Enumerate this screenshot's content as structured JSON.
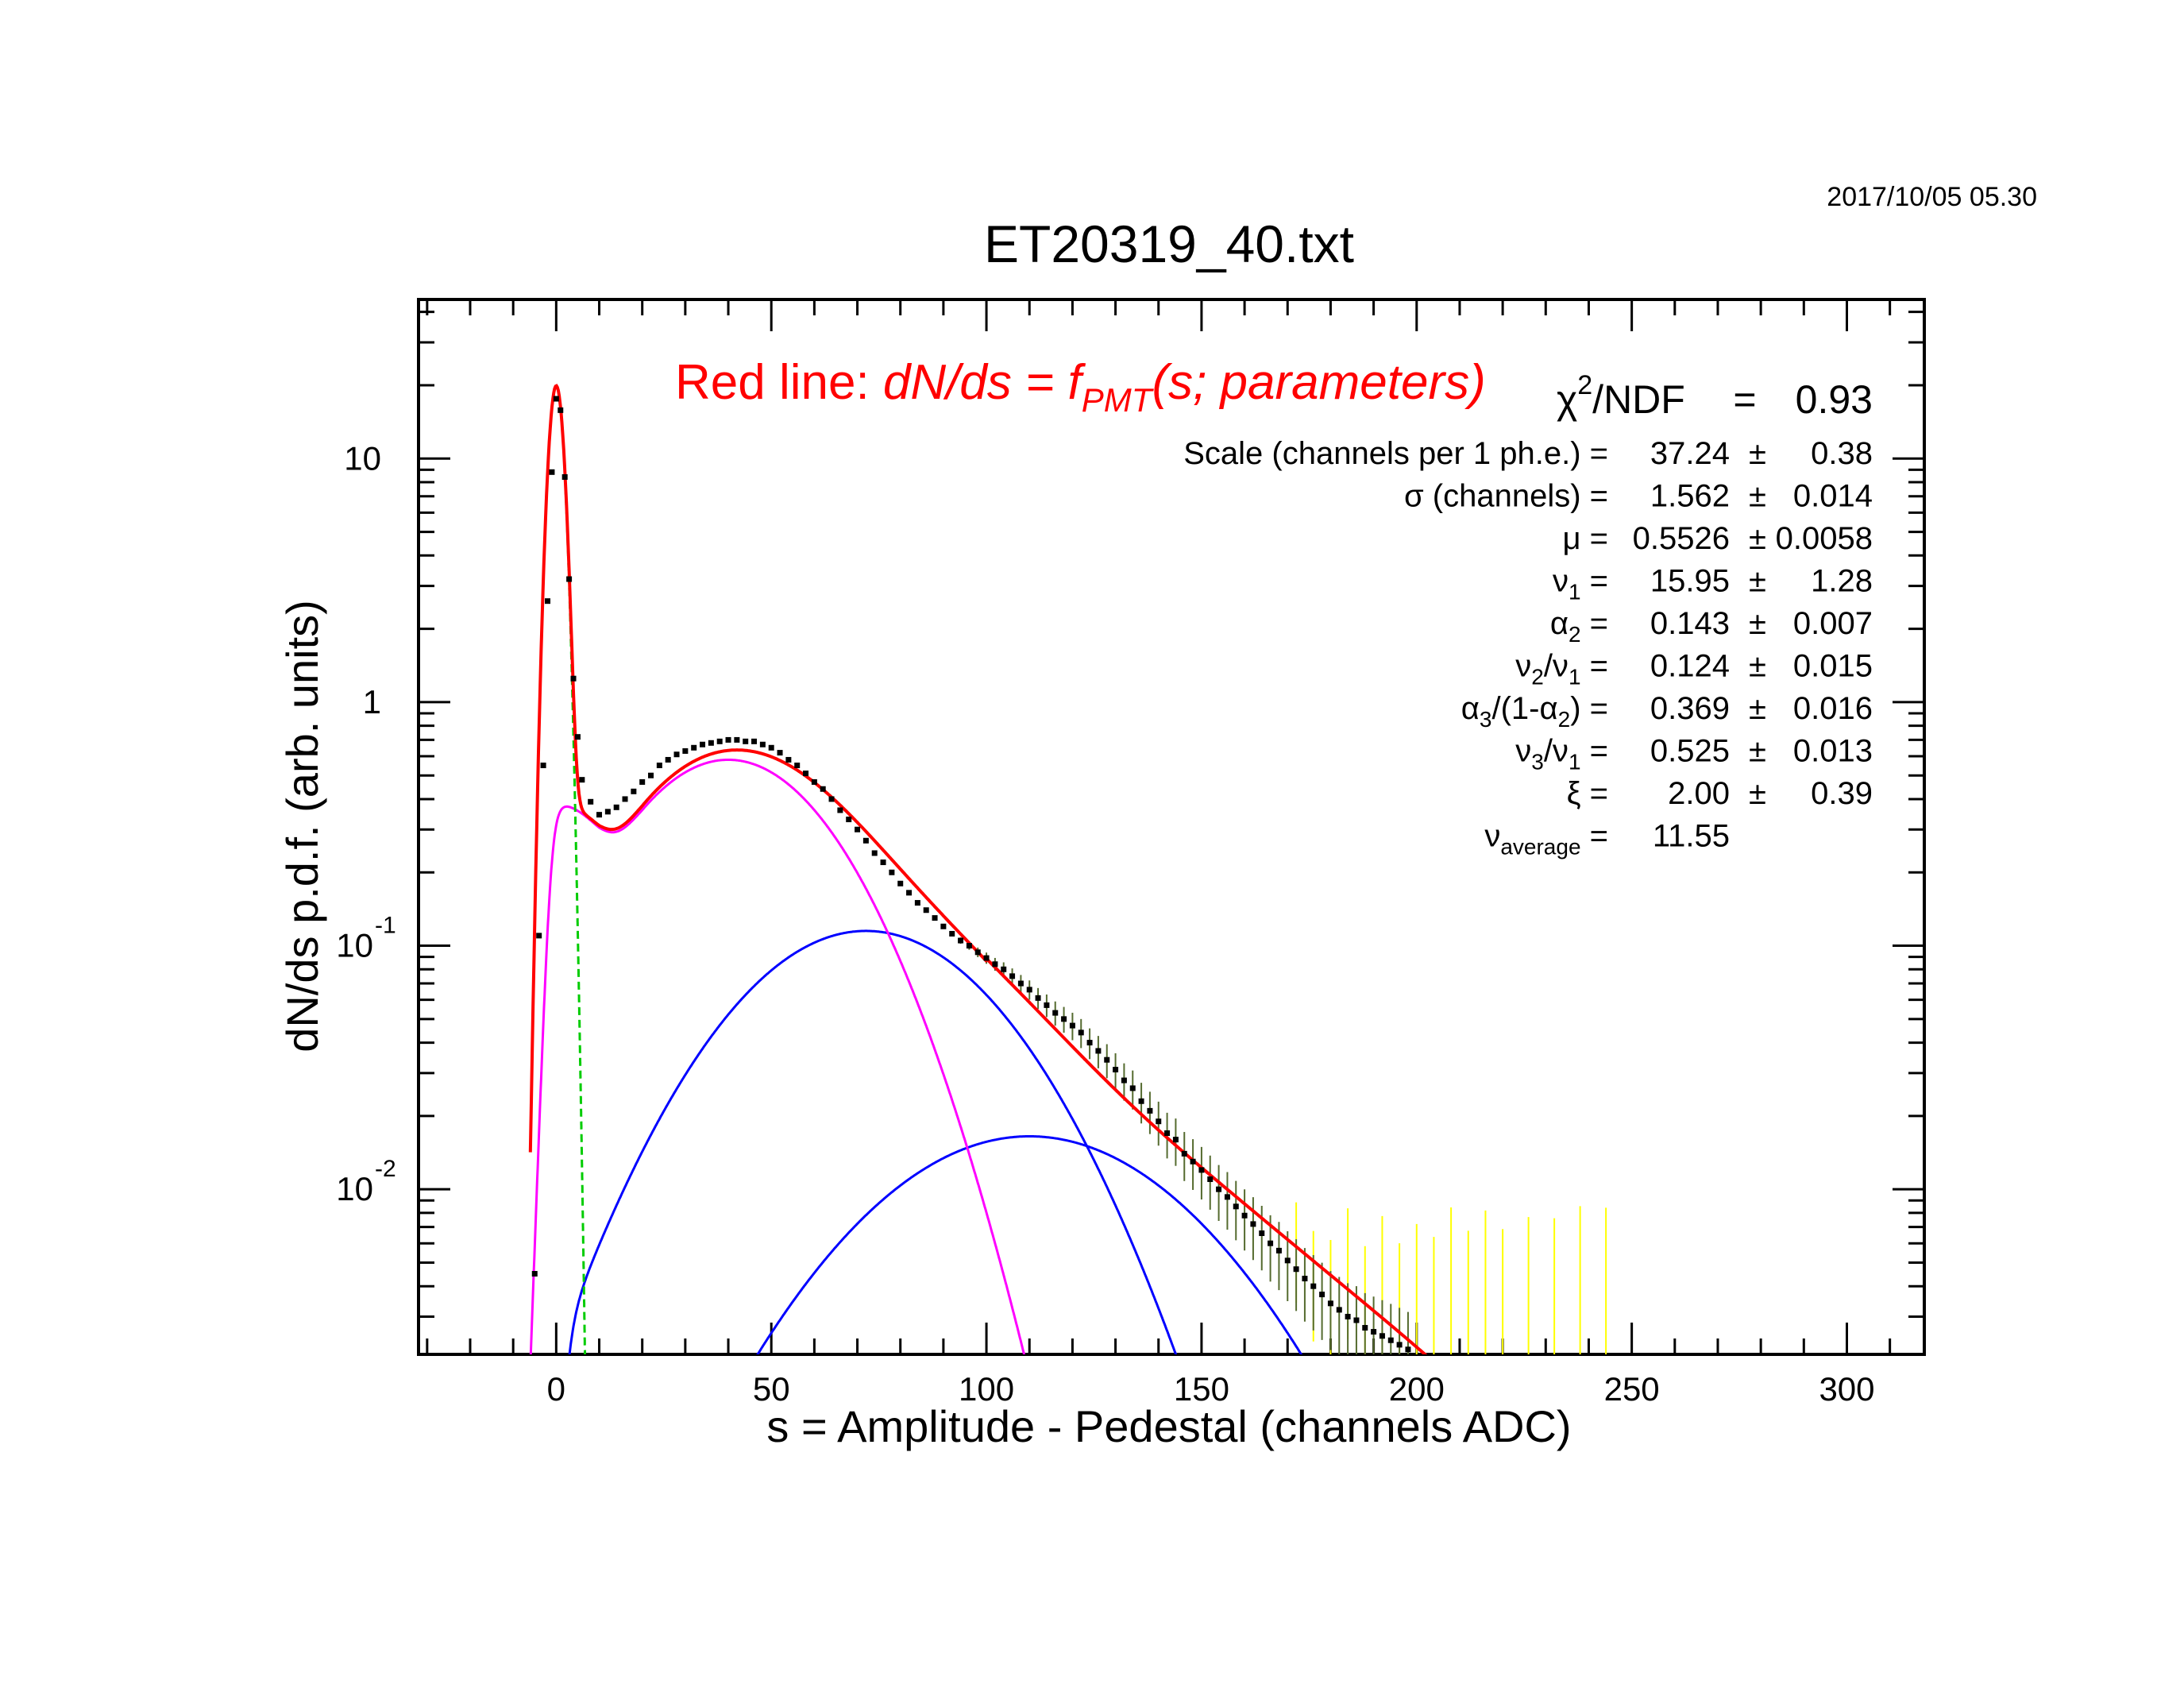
{
  "header": {
    "timestamp": "2017/10/05   05.30",
    "title": "ET20319_40.txt"
  },
  "annotation": {
    "prefix": "Red line: ",
    "formula_a": "dN/ds = f",
    "formula_sub": "PMT",
    "formula_b": "(s; parameters)"
  },
  "fit_results": {
    "chi2_sym": "χ",
    "chi2_sup": "2",
    "chi2_rest": "/NDF",
    "chi2_eq": "=",
    "chi2_value": "0.93",
    "params": [
      {
        "label": [
          {
            "t": "Scale (channels per 1 ph.e.) ="
          }
        ],
        "value": "37.24",
        "pm": "±",
        "error": "0.38"
      },
      {
        "label": [
          {
            "t": "σ (channels) ="
          }
        ],
        "value": "1.562",
        "pm": "±",
        "error": "0.014"
      },
      {
        "label": [
          {
            "t": "μ  ="
          }
        ],
        "value": "0.5526",
        "pm": "±",
        "error": "0.0058"
      },
      {
        "label": [
          {
            "t": "ν"
          },
          {
            "t": "1",
            "sub": true
          },
          {
            "t": " ="
          }
        ],
        "value": "15.95",
        "pm": "±",
        "error": "1.28"
      },
      {
        "label": [
          {
            "t": "α"
          },
          {
            "t": "2",
            "sub": true
          },
          {
            "t": " ="
          }
        ],
        "value": "0.143",
        "pm": "±",
        "error": "0.007"
      },
      {
        "label": [
          {
            "t": "ν"
          },
          {
            "t": "2",
            "sub": true
          },
          {
            "t": "/ν"
          },
          {
            "t": "1",
            "sub": true
          },
          {
            "t": " ="
          }
        ],
        "value": "0.124",
        "pm": "±",
        "error": "0.015"
      },
      {
        "label": [
          {
            "t": "α"
          },
          {
            "t": "3",
            "sub": true
          },
          {
            "t": "/(1-α"
          },
          {
            "t": "2",
            "sub": true
          },
          {
            "t": ") ="
          }
        ],
        "value": "0.369",
        "pm": "±",
        "error": "0.016"
      },
      {
        "label": [
          {
            "t": "ν"
          },
          {
            "t": "3",
            "sub": true
          },
          {
            "t": "/ν"
          },
          {
            "t": "1",
            "sub": true
          },
          {
            "t": " ="
          }
        ],
        "value": "0.525",
        "pm": "±",
        "error": "0.013"
      },
      {
        "label": [
          {
            "t": "ξ  ="
          }
        ],
        "value": "2.00",
        "pm": "±",
        "error": "0.39"
      },
      {
        "label": [
          {
            "t": "ν"
          },
          {
            "t": "average",
            "sub": true
          },
          {
            "t": "  ="
          }
        ],
        "value": "11.55",
        "pm": "",
        "error": ""
      }
    ]
  },
  "colors": {
    "fit": "#ff0000",
    "pedestal": "#00cc00",
    "single_pe": "#ff00ff",
    "multi_pe": "#0000ff",
    "data": "#000000",
    "data_err": "#556b2f",
    "low_stat_err": "#ffff00"
  },
  "chart_data": {
    "type": "scatter",
    "title": "ET20319_40.txt",
    "xlabel": "s = Amplitude - Pedestal (channels ADC)",
    "ylabel": "dN/ds p.d.f. (arb. units)",
    "xlim": [
      -32,
      318
    ],
    "ylim": [
      0.0021,
      45
    ],
    "yscale": "log",
    "x_ticks": [
      0,
      50,
      100,
      150,
      200,
      250,
      300
    ],
    "y_ticks": [
      {
        "base": "10",
        "exp": "-2",
        "value": 0.01
      },
      {
        "base": "10",
        "exp": "-1",
        "value": 0.1
      },
      {
        "base": "1",
        "exp": "",
        "value": 1
      },
      {
        "base": "10",
        "exp": "",
        "value": 10
      }
    ],
    "grid": false,
    "curve_x_start": -6,
    "curve_x_end": 245,
    "model": {
      "pedestal_amp": 19.6,
      "pedestal_sigma": 1.562,
      "single_peak_x": 40,
      "single_peak_y": 0.58,
      "single_width": 29,
      "single_onset_y": 0.4,
      "pe2_peak_x": 72,
      "pe2_peak_y": 0.115,
      "pe2_width": 36,
      "pe3_peak_x": 110,
      "pe3_peak_y": 0.0165,
      "pe3_width": 44
    },
    "data_series": [
      {
        "x": -5,
        "y": 0.0045
      },
      {
        "x": -4,
        "y": 0.11
      },
      {
        "x": -3,
        "y": 0.55
      },
      {
        "x": -2,
        "y": 2.6
      },
      {
        "x": -1,
        "y": 8.8
      },
      {
        "x": 0,
        "y": 17.6
      },
      {
        "x": 1,
        "y": 15.8
      },
      {
        "x": 2,
        "y": 8.4
      },
      {
        "x": 3,
        "y": 3.2
      },
      {
        "x": 4,
        "y": 1.25
      },
      {
        "x": 5,
        "y": 0.72
      },
      {
        "x": 6,
        "y": 0.48
      },
      {
        "x": 8,
        "y": 0.39
      },
      {
        "x": 10,
        "y": 0.345
      },
      {
        "x": 12,
        "y": 0.355
      },
      {
        "x": 14,
        "y": 0.37
      },
      {
        "x": 16,
        "y": 0.4
      },
      {
        "x": 18,
        "y": 0.43
      },
      {
        "x": 20,
        "y": 0.47
      },
      {
        "x": 22,
        "y": 0.5
      },
      {
        "x": 24,
        "y": 0.55
      },
      {
        "x": 26,
        "y": 0.58
      },
      {
        "x": 28,
        "y": 0.61
      },
      {
        "x": 30,
        "y": 0.63
      },
      {
        "x": 32,
        "y": 0.65
      },
      {
        "x": 34,
        "y": 0.67
      },
      {
        "x": 36,
        "y": 0.68
      },
      {
        "x": 38,
        "y": 0.69
      },
      {
        "x": 40,
        "y": 0.7
      },
      {
        "x": 42,
        "y": 0.7
      },
      {
        "x": 44,
        "y": 0.69
      },
      {
        "x": 46,
        "y": 0.69
      },
      {
        "x": 48,
        "y": 0.67
      },
      {
        "x": 50,
        "y": 0.65
      },
      {
        "x": 52,
        "y": 0.62
      },
      {
        "x": 54,
        "y": 0.58
      },
      {
        "x": 56,
        "y": 0.55
      },
      {
        "x": 58,
        "y": 0.51
      },
      {
        "x": 60,
        "y": 0.47
      },
      {
        "x": 62,
        "y": 0.44
      },
      {
        "x": 64,
        "y": 0.4
      },
      {
        "x": 66,
        "y": 0.36
      },
      {
        "x": 68,
        "y": 0.33
      },
      {
        "x": 70,
        "y": 0.3
      },
      {
        "x": 72,
        "y": 0.27
      },
      {
        "x": 74,
        "y": 0.24
      },
      {
        "x": 76,
        "y": 0.22
      },
      {
        "x": 78,
        "y": 0.2
      },
      {
        "x": 80,
        "y": 0.18
      },
      {
        "x": 82,
        "y": 0.165
      },
      {
        "x": 84,
        "y": 0.15
      },
      {
        "x": 86,
        "y": 0.14
      },
      {
        "x": 88,
        "y": 0.13
      },
      {
        "x": 90,
        "y": 0.12
      },
      {
        "x": 92,
        "y": 0.112
      },
      {
        "x": 94,
        "y": 0.105
      },
      {
        "x": 96,
        "y": 0.1
      },
      {
        "x": 98,
        "y": 0.094
      },
      {
        "x": 100,
        "y": 0.089
      },
      {
        "x": 102,
        "y": 0.084
      },
      {
        "x": 104,
        "y": 0.08
      },
      {
        "x": 106,
        "y": 0.075
      },
      {
        "x": 108,
        "y": 0.07
      },
      {
        "x": 110,
        "y": 0.066
      },
      {
        "x": 112,
        "y": 0.061
      },
      {
        "x": 114,
        "y": 0.057
      },
      {
        "x": 116,
        "y": 0.053
      },
      {
        "x": 118,
        "y": 0.05
      },
      {
        "x": 120,
        "y": 0.047
      },
      {
        "x": 122,
        "y": 0.044
      },
      {
        "x": 124,
        "y": 0.04
      },
      {
        "x": 126,
        "y": 0.037
      },
      {
        "x": 128,
        "y": 0.034
      },
      {
        "x": 130,
        "y": 0.031
      },
      {
        "x": 132,
        "y": 0.028
      },
      {
        "x": 134,
        "y": 0.026
      },
      {
        "x": 136,
        "y": 0.023
      },
      {
        "x": 138,
        "y": 0.021
      },
      {
        "x": 140,
        "y": 0.019
      },
      {
        "x": 142,
        "y": 0.017
      },
      {
        "x": 144,
        "y": 0.016
      },
      {
        "x": 146,
        "y": 0.014
      },
      {
        "x": 148,
        "y": 0.013
      },
      {
        "x": 150,
        "y": 0.012
      },
      {
        "x": 152,
        "y": 0.011
      },
      {
        "x": 154,
        "y": 0.01
      },
      {
        "x": 156,
        "y": 0.0093
      },
      {
        "x": 158,
        "y": 0.0085
      },
      {
        "x": 160,
        "y": 0.0078
      },
      {
        "x": 162,
        "y": 0.0072
      },
      {
        "x": 164,
        "y": 0.0066
      },
      {
        "x": 166,
        "y": 0.006
      },
      {
        "x": 168,
        "y": 0.0056
      },
      {
        "x": 170,
        "y": 0.0051
      },
      {
        "x": 172,
        "y": 0.0047
      },
      {
        "x": 174,
        "y": 0.0043
      },
      {
        "x": 176,
        "y": 0.004
      },
      {
        "x": 178,
        "y": 0.0037
      },
      {
        "x": 180,
        "y": 0.0034
      },
      {
        "x": 182,
        "y": 0.0032
      },
      {
        "x": 184,
        "y": 0.003
      },
      {
        "x": 186,
        "y": 0.0029
      },
      {
        "x": 188,
        "y": 0.0027
      },
      {
        "x": 190,
        "y": 0.0026
      },
      {
        "x": 192,
        "y": 0.0025
      },
      {
        "x": 194,
        "y": 0.0024
      },
      {
        "x": 196,
        "y": 0.0023
      },
      {
        "x": 198,
        "y": 0.0022
      }
    ],
    "low_stat_bins": [
      {
        "x": 172,
        "y": 0.0055
      },
      {
        "x": 176,
        "y": 0.004
      },
      {
        "x": 180,
        "y": 0.0035
      },
      {
        "x": 184,
        "y": 0.0045
      },
      {
        "x": 188,
        "y": 0.003
      },
      {
        "x": 192,
        "y": 0.0038
      },
      {
        "x": 196,
        "y": 0.0028
      },
      {
        "x": 200,
        "y": 0.0032
      },
      {
        "x": 204,
        "y": 0.0027
      },
      {
        "x": 208,
        "y": 0.0034
      },
      {
        "x": 212,
        "y": 0.0026
      },
      {
        "x": 216,
        "y": 0.003
      },
      {
        "x": 220,
        "y": 0.0024
      },
      {
        "x": 226,
        "y": 0.0025
      },
      {
        "x": 232,
        "y": 0.0023
      },
      {
        "x": 238,
        "y": 0.0024
      },
      {
        "x": 244,
        "y": 0.0022
      }
    ]
  }
}
